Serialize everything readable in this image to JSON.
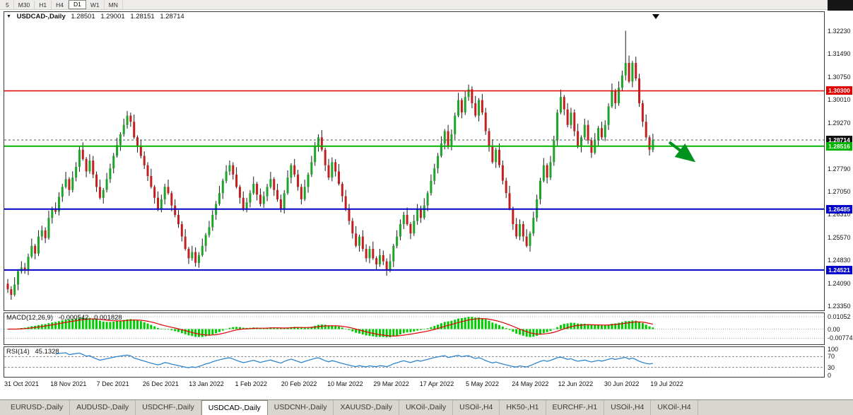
{
  "topbar": {
    "timeframes": [
      "5",
      "M30",
      "H1",
      "H4",
      "D1",
      "W1",
      "MN"
    ],
    "active": "D1"
  },
  "chart_header": {
    "symbol": "USDCAD-,Daily",
    "open": "1.28501",
    "high": "1.29001",
    "low": "1.28151",
    "close": "1.28714"
  },
  "price_axis": {
    "ticks": [
      "1.32230",
      "1.31490",
      "1.30750",
      "1.30010",
      "1.29270",
      "1.27790",
      "1.27050",
      "1.26310",
      "1.25570",
      "1.24830",
      "1.24090",
      "1.23350"
    ],
    "markers": [
      {
        "value": "1.30300",
        "color": "#e00000"
      },
      {
        "value": "1.28714",
        "color": "#111111"
      },
      {
        "value": "1.28516",
        "color": "#00b400"
      },
      {
        "value": "1.26485",
        "color": "#0000c8"
      },
      {
        "value": "1.24521",
        "color": "#0000c8"
      }
    ]
  },
  "chart_data": {
    "type": "candlestick",
    "symbol": "USDCAD-",
    "timeframe": "Daily",
    "ohlc_current": {
      "open": 1.28501,
      "high": 1.29001,
      "low": 1.28151,
      "close": 1.28714
    },
    "price_range": [
      1.23218,
      1.32842
    ],
    "levels": [
      {
        "price": 1.303,
        "color": "#e00000",
        "width": 1.5,
        "style": "solid"
      },
      {
        "price": 1.28714,
        "color": "#555555",
        "width": 1,
        "style": "dashed"
      },
      {
        "price": 1.28516,
        "color": "#00b400",
        "width": 2,
        "style": "solid"
      },
      {
        "price": 1.26485,
        "color": "#0000c8",
        "width": 2,
        "style": "solid"
      },
      {
        "price": 1.24521,
        "color": "#0000c8",
        "width": 2,
        "style": "solid"
      }
    ],
    "first_open": 1.2408,
    "closes": [
      1.239,
      1.2372,
      1.2405,
      1.2448,
      1.246,
      1.2452,
      1.2495,
      1.253,
      1.2505,
      1.256,
      1.258,
      1.2555,
      1.262,
      1.265,
      1.264,
      1.2688,
      1.272,
      1.2745,
      1.271,
      1.275,
      1.2785,
      1.284,
      1.281,
      1.277,
      1.2805,
      1.276,
      1.272,
      1.2685,
      1.271,
      1.2745,
      1.278,
      1.282,
      1.2855,
      1.289,
      1.292,
      1.295,
      1.293,
      1.288,
      1.285,
      1.282,
      1.279,
      1.2755,
      1.272,
      1.2685,
      1.265,
      1.268,
      1.272,
      1.27,
      1.266,
      1.263,
      1.26,
      1.256,
      1.252,
      1.249,
      1.251,
      1.2475,
      1.25,
      1.253,
      1.2565,
      1.259,
      1.263,
      1.2665,
      1.27,
      1.274,
      1.277,
      1.279,
      1.276,
      1.272,
      1.2685,
      1.265,
      1.267,
      1.27,
      1.273,
      1.2695,
      1.2665,
      1.269,
      1.272,
      1.2745,
      1.271,
      1.268,
      1.265,
      1.27,
      1.275,
      1.279,
      1.276,
      1.272,
      1.268,
      1.272,
      1.276,
      1.28,
      1.285,
      1.288,
      1.284,
      1.279,
      1.275,
      1.28,
      1.277,
      1.273,
      1.269,
      1.265,
      1.261,
      1.257,
      1.253,
      1.256,
      1.252,
      1.249,
      1.252,
      1.249,
      1.247,
      1.25,
      1.248,
      1.245,
      1.248,
      1.253,
      1.256,
      1.26,
      1.263,
      1.26,
      1.257,
      1.261,
      1.265,
      1.262,
      1.266,
      1.27,
      1.274,
      1.278,
      1.282,
      1.286,
      1.29,
      1.285,
      1.289,
      1.295,
      1.3,
      1.296,
      1.301,
      1.3035,
      1.299,
      1.295,
      1.3,
      1.296,
      1.29,
      1.285,
      1.28,
      1.284,
      1.279,
      1.274,
      1.27,
      1.265,
      1.26,
      1.256,
      1.26,
      1.256,
      1.253,
      1.257,
      1.262,
      1.268,
      1.274,
      1.279,
      1.275,
      1.28,
      1.287,
      1.296,
      1.301,
      1.297,
      1.292,
      1.296,
      1.29,
      1.285,
      1.288,
      1.292,
      1.287,
      1.283,
      1.287,
      1.291,
      1.288,
      1.292,
      1.298,
      1.303,
      1.299,
      1.304,
      1.308,
      1.312,
      1.306,
      1.312,
      1.307,
      1.299,
      1.293,
      1.288,
      1.284,
      1.28714
    ],
    "spike_high": {
      "index": 181,
      "price": 1.3224
    },
    "colors": {
      "up": "#1fa32a",
      "down": "#c41e1e",
      "wick": "#1a1a1a"
    },
    "annotations": [
      {
        "name": "sell-arrow",
        "type": "arrow",
        "color": "#00941f",
        "direction": "down-right"
      },
      {
        "name": "top-marker",
        "type": "triangle-down",
        "color": "#000000"
      }
    ]
  },
  "macd": {
    "label": "MACD(12,26,9)",
    "value": "-0.000542",
    "signal_value": "0.001828",
    "axis": [
      "0.01052",
      "0.00",
      "-0.00774"
    ],
    "range": [
      -0.0129,
      0.0135
    ],
    "params": {
      "fast": 12,
      "slow": 26,
      "signal": 9
    },
    "colors": {
      "hist": "#00cc00",
      "signal": "#e00000"
    }
  },
  "rsi": {
    "label": "RSI(14)",
    "value": "45.1328",
    "axis": [
      "100",
      "70",
      "30",
      "0"
    ],
    "levels": [
      70,
      30
    ],
    "period": 14,
    "color": "#2e86d0"
  },
  "date_axis": {
    "labels": [
      "31 Oct 2021",
      "18 Nov 2021",
      "7 Dec 2021",
      "26 Dec 2021",
      "13 Jan 2022",
      "1 Feb 2022",
      "20 Feb 2022",
      "10 Mar 2022",
      "29 Mar 2022",
      "17 Apr 2022",
      "5 May 2022",
      "24 May 2022",
      "12 Jun 2022",
      "30 Jun 2022",
      "19 Jul 2022"
    ]
  },
  "tabbar": {
    "tabs": [
      "EURUSD-,Daily",
      "AUDUSD-,Daily",
      "USDCHF-,Daily",
      "USDCAD-,Daily",
      "USDCNH-,Daily",
      "XAUUSD-,Daily",
      "UKOil-,Daily",
      "USOil-,H4",
      "HK50-,H1",
      "EURCHF-,H1",
      "USOil-,H4",
      "UKOil-,H4"
    ],
    "active_index": 3
  }
}
